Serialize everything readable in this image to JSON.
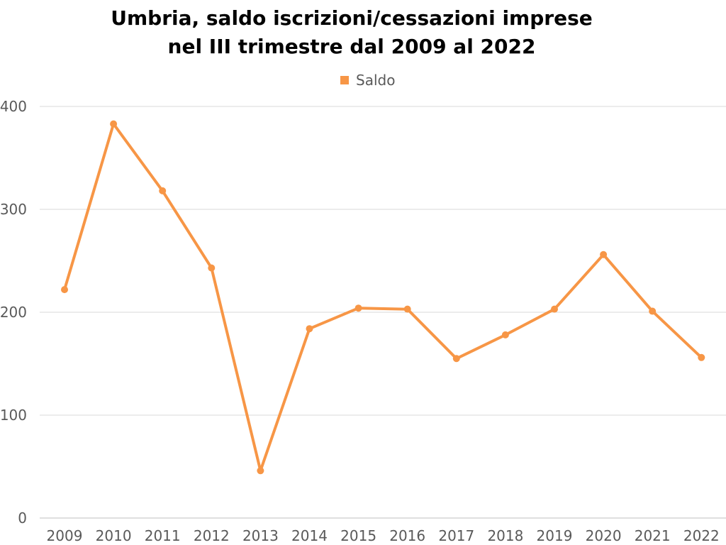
{
  "chart_data": {
    "type": "line",
    "title_lines": [
      "Umbria, saldo iscrizioni/cessazioni imprese",
      "nel III trimestre dal 2009 al 2022"
    ],
    "xlabel": "",
    "ylabel": "",
    "categories": [
      "2009",
      "2010",
      "2011",
      "2012",
      "2013",
      "2014",
      "2015",
      "2016",
      "2017",
      "2018",
      "2019",
      "2020",
      "2021",
      "2022"
    ],
    "series": [
      {
        "name": "Saldo",
        "color": "#F79646",
        "values": [
          222,
          383,
          318,
          243,
          46,
          184,
          204,
          203,
          155,
          178,
          203,
          256,
          201,
          156
        ]
      }
    ],
    "ylim": [
      0,
      400
    ],
    "yticks": [
      "0",
      "100",
      "200",
      "300",
      "400"
    ],
    "grid": true,
    "legend_position": "top-center",
    "gridline_color": "#D9D9D9",
    "text_color": "#595959"
  }
}
